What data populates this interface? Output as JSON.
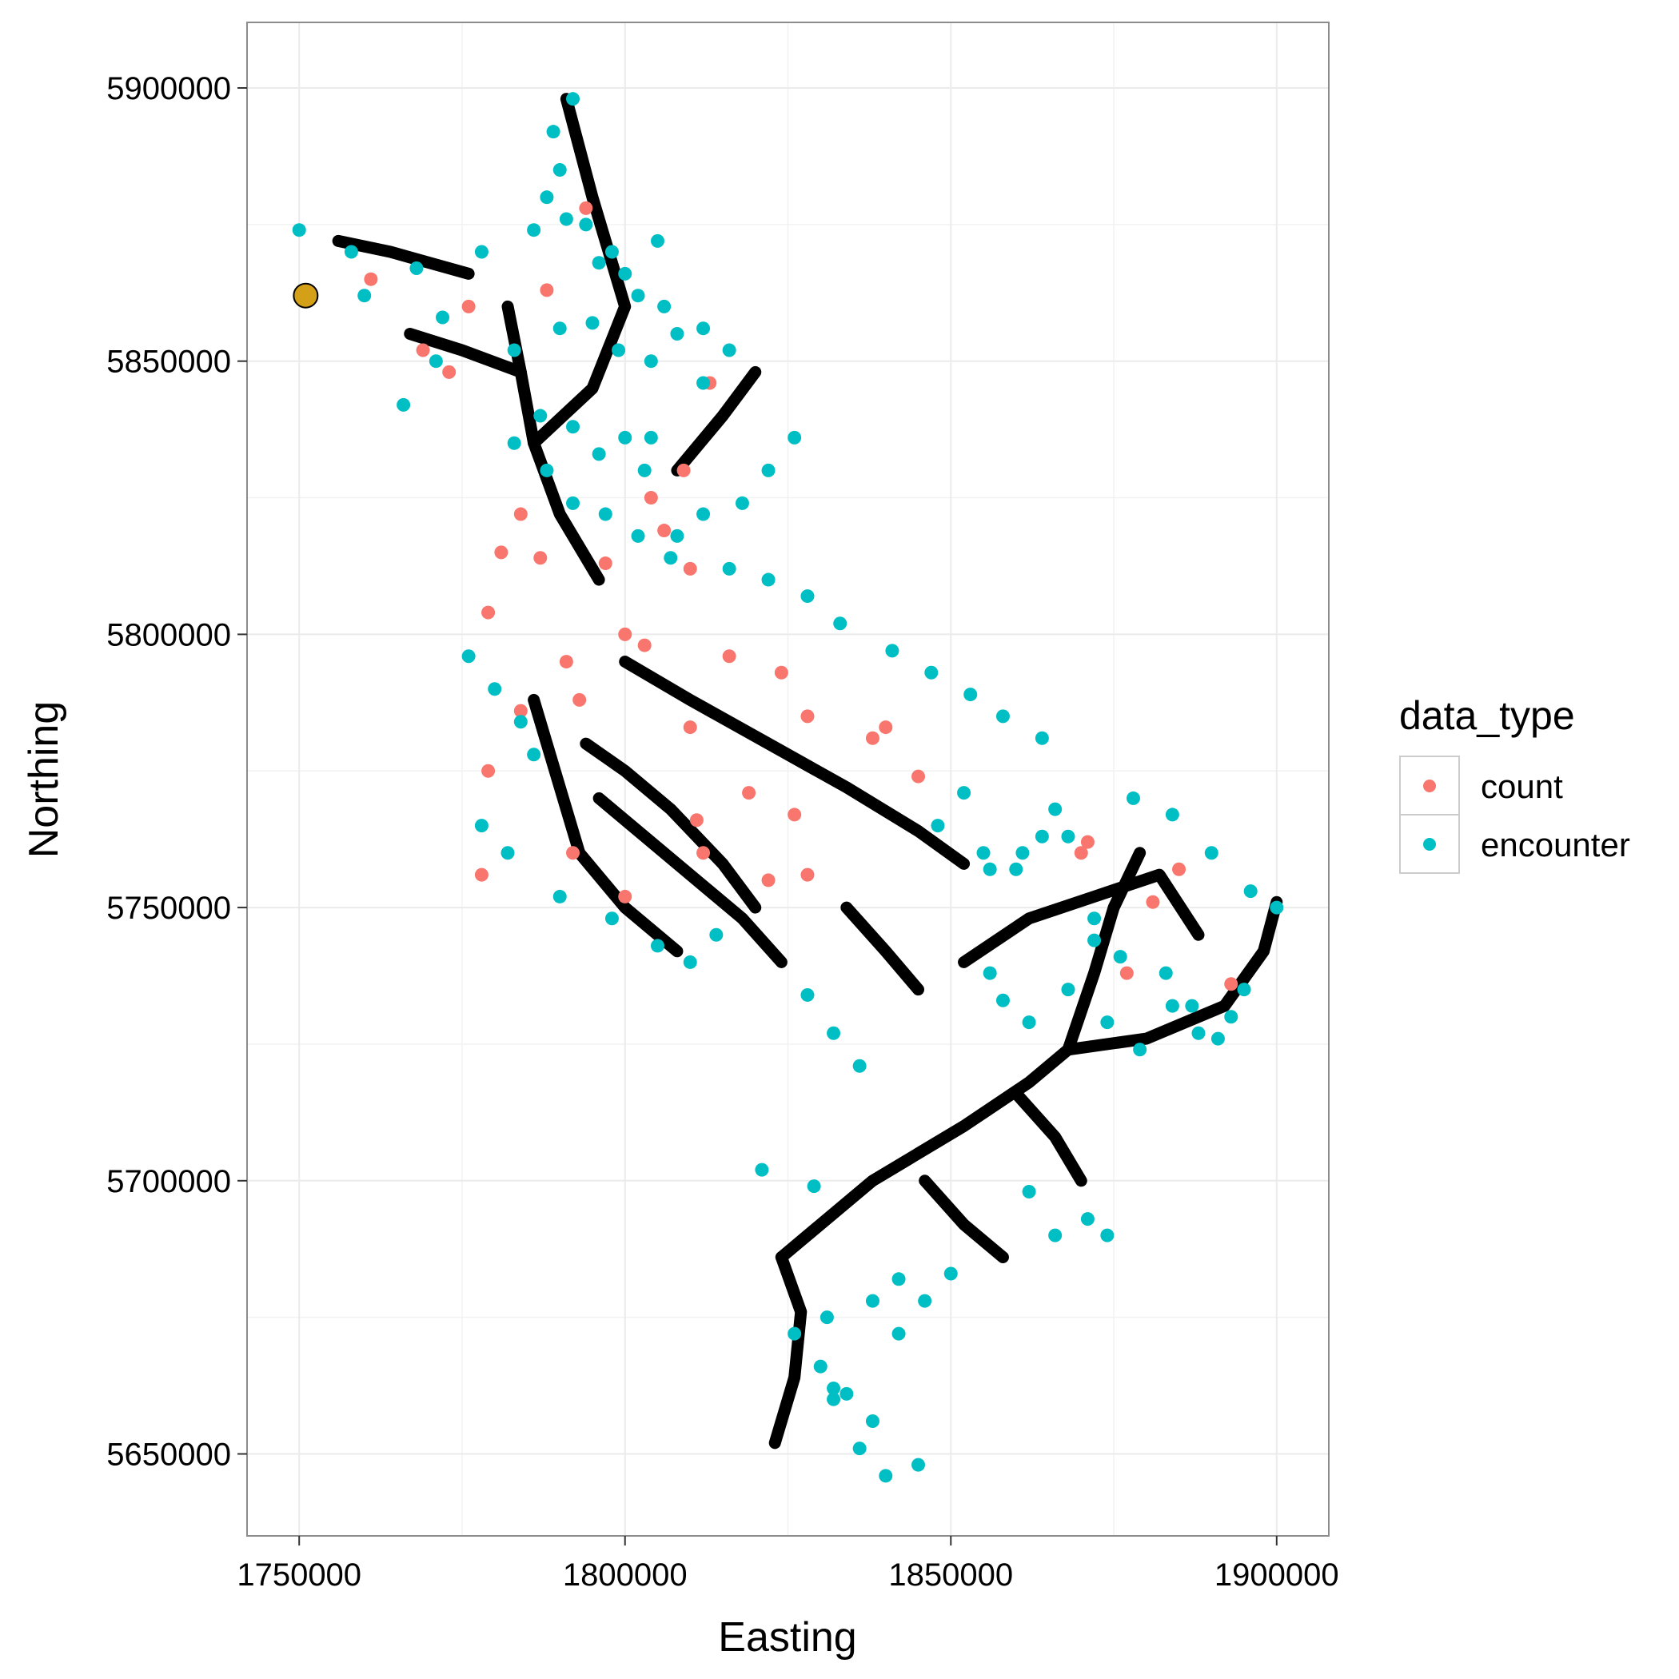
{
  "chart_data": {
    "type": "scatter",
    "xlabel": "Easting",
    "ylabel": "Northing",
    "xlim": [
      1742000,
      1908000
    ],
    "ylim": [
      5635000,
      5912000
    ],
    "x_ticks": [
      1750000,
      1800000,
      1850000,
      1900000
    ],
    "y_ticks": [
      5650000,
      5700000,
      5750000,
      5800000,
      5850000,
      5900000
    ],
    "grid": true,
    "legend_title": "data_type",
    "legend_position": "right",
    "colors": {
      "network": "#000000",
      "count": "#F8766D",
      "encounter": "#00BFC4",
      "site": "#D4A017"
    },
    "network_paths": [
      [
        [
          1824000,
          5686000
        ],
        [
          1838000,
          5700000
        ],
        [
          1852000,
          5710000
        ],
        [
          1862000,
          5718000
        ],
        [
          1868000,
          5724000
        ]
      ],
      [
        [
          1868000,
          5724000
        ],
        [
          1880000,
          5726000
        ],
        [
          1892000,
          5732000
        ],
        [
          1898000,
          5742000
        ],
        [
          1900000,
          5751000
        ]
      ],
      [
        [
          1868000,
          5724000
        ],
        [
          1872000,
          5738000
        ],
        [
          1875000,
          5750000
        ],
        [
          1879000,
          5760000
        ]
      ],
      [
        [
          1824000,
          5686000
        ],
        [
          1827000,
          5676000
        ],
        [
          1826000,
          5664000
        ],
        [
          1823000,
          5652000
        ]
      ],
      [
        [
          1852000,
          5740000
        ],
        [
          1862000,
          5748000
        ],
        [
          1872000,
          5752000
        ],
        [
          1882000,
          5756000
        ],
        [
          1888000,
          5745000
        ]
      ],
      [
        [
          1824000,
          5740000
        ],
        [
          1818000,
          5748000
        ],
        [
          1810000,
          5756000
        ],
        [
          1803000,
          5763000
        ],
        [
          1796000,
          5770000
        ]
      ],
      [
        [
          1800000,
          5795000
        ],
        [
          1810000,
          5788000
        ],
        [
          1822000,
          5780000
        ],
        [
          1834000,
          5772000
        ],
        [
          1845000,
          5764000
        ],
        [
          1852000,
          5758000
        ]
      ],
      [
        [
          1796000,
          5810000
        ],
        [
          1790000,
          5822000
        ],
        [
          1786000,
          5835000
        ],
        [
          1784000,
          5848000
        ],
        [
          1782000,
          5860000
        ]
      ],
      [
        [
          1786000,
          5835000
        ],
        [
          1795000,
          5845000
        ],
        [
          1800000,
          5860000
        ],
        [
          1795000,
          5880000
        ],
        [
          1791000,
          5898000
        ]
      ],
      [
        [
          1776000,
          5866000
        ],
        [
          1764000,
          5870000
        ],
        [
          1756000,
          5872000
        ]
      ],
      [
        [
          1784000,
          5848000
        ],
        [
          1775000,
          5852000
        ],
        [
          1767000,
          5855000
        ]
      ],
      [
        [
          1794000,
          5780000
        ],
        [
          1800000,
          5775000
        ],
        [
          1807000,
          5768000
        ],
        [
          1815000,
          5758000
        ],
        [
          1820000,
          5750000
        ]
      ],
      [
        [
          1786000,
          5788000
        ],
        [
          1790000,
          5772000
        ],
        [
          1793000,
          5760000
        ],
        [
          1800000,
          5750000
        ],
        [
          1808000,
          5742000
        ]
      ],
      [
        [
          1808000,
          5830000
        ],
        [
          1815000,
          5840000
        ],
        [
          1820000,
          5848000
        ]
      ],
      [
        [
          1834000,
          5750000
        ],
        [
          1840000,
          5742000
        ],
        [
          1845000,
          5735000
        ]
      ],
      [
        [
          1846000,
          5700000
        ],
        [
          1852000,
          5692000
        ],
        [
          1858000,
          5686000
        ]
      ],
      [
        [
          1860000,
          5716000
        ],
        [
          1866000,
          5708000
        ],
        [
          1870000,
          5700000
        ]
      ]
    ],
    "series": [
      {
        "name": "count",
        "x": [
          1794000,
          1773000,
          1788000,
          1779000,
          1804000,
          1810000,
          1787000,
          1797000,
          1781000,
          1800000,
          1803000,
          1791000,
          1793000,
          1784000,
          1810000,
          1816000,
          1824000,
          1828000,
          1840000,
          1845000,
          1792000,
          1800000,
          1828000,
          1811000,
          1812000,
          1819000,
          1826000,
          1838000,
          1870000,
          1871000,
          1877000,
          1881000,
          1885000,
          1893000,
          1778000,
          1806000,
          1779000,
          1809000,
          1822000,
          1769000,
          1761000,
          1776000,
          1784000,
          1813000
        ],
        "y": [
          5878000,
          5848000,
          5863000,
          5804000,
          5825000,
          5812000,
          5814000,
          5813000,
          5815000,
          5800000,
          5798000,
          5795000,
          5788000,
          5786000,
          5783000,
          5796000,
          5793000,
          5785000,
          5783000,
          5774000,
          5760000,
          5752000,
          5756000,
          5766000,
          5760000,
          5771000,
          5767000,
          5781000,
          5760000,
          5762000,
          5738000,
          5751000,
          5757000,
          5736000,
          5756000,
          5819000,
          5775000,
          5830000,
          5755000,
          5852000,
          5865000,
          5860000,
          5822000,
          5846000
        ]
      },
      {
        "name": "encounter",
        "x": [
          1750000,
          1758000,
          1768000,
          1778000,
          1786000,
          1791000,
          1796000,
          1800000,
          1805000,
          1760000,
          1772000,
          1783000,
          1790000,
          1795000,
          1799000,
          1804000,
          1812000,
          1787000,
          1792000,
          1796000,
          1800000,
          1803000,
          1783000,
          1788000,
          1792000,
          1797000,
          1802000,
          1807000,
          1816000,
          1822000,
          1828000,
          1833000,
          1841000,
          1847000,
          1853000,
          1858000,
          1864000,
          1878000,
          1884000,
          1890000,
          1896000,
          1900000,
          1856000,
          1861000,
          1868000,
          1872000,
          1876000,
          1883000,
          1887000,
          1893000,
          1828000,
          1832000,
          1836000,
          1831000,
          1826000,
          1830000,
          1834000,
          1838000,
          1836000,
          1840000,
          1845000,
          1821000,
          1829000,
          1776000,
          1780000,
          1784000,
          1786000,
          1778000,
          1782000,
          1790000,
          1798000,
          1805000,
          1810000,
          1814000,
          1771000,
          1766000,
          1790000,
          1789000,
          1792000,
          1788000,
          1794000,
          1798000,
          1802000,
          1806000,
          1808000,
          1812000,
          1816000,
          1848000,
          1852000,
          1855000,
          1860000,
          1864000,
          1866000,
          1872000,
          1856000,
          1858000,
          1862000,
          1868000,
          1874000,
          1879000,
          1884000,
          1888000,
          1891000,
          1895000,
          1832000,
          1842000,
          1846000,
          1850000,
          1862000,
          1866000,
          1871000,
          1874000,
          1842000,
          1838000,
          1832000,
          1818000,
          1822000,
          1826000,
          1808000,
          1812000,
          1804000
        ],
        "y": [
          5874000,
          5870000,
          5867000,
          5870000,
          5874000,
          5876000,
          5868000,
          5866000,
          5872000,
          5862000,
          5858000,
          5852000,
          5856000,
          5857000,
          5852000,
          5850000,
          5846000,
          5840000,
          5838000,
          5833000,
          5836000,
          5830000,
          5835000,
          5830000,
          5824000,
          5822000,
          5818000,
          5814000,
          5812000,
          5810000,
          5807000,
          5802000,
          5797000,
          5793000,
          5789000,
          5785000,
          5781000,
          5770000,
          5767000,
          5760000,
          5753000,
          5750000,
          5757000,
          5760000,
          5763000,
          5748000,
          5741000,
          5738000,
          5732000,
          5730000,
          5734000,
          5727000,
          5721000,
          5675000,
          5672000,
          5666000,
          5661000,
          5656000,
          5651000,
          5646000,
          5648000,
          5702000,
          5699000,
          5796000,
          5790000,
          5784000,
          5778000,
          5765000,
          5760000,
          5752000,
          5748000,
          5743000,
          5740000,
          5745000,
          5850000,
          5842000,
          5885000,
          5892000,
          5898000,
          5880000,
          5875000,
          5870000,
          5862000,
          5860000,
          5855000,
          5856000,
          5852000,
          5765000,
          5771000,
          5760000,
          5757000,
          5763000,
          5768000,
          5744000,
          5738000,
          5733000,
          5729000,
          5735000,
          5729000,
          5724000,
          5732000,
          5727000,
          5726000,
          5735000,
          5662000,
          5672000,
          5678000,
          5683000,
          5698000,
          5690000,
          5693000,
          5690000,
          5682000,
          5678000,
          5660000,
          5824000,
          5830000,
          5836000,
          5818000,
          5822000,
          5836000
        ]
      }
    ],
    "highlight": {
      "x": 1751000,
      "y": 5862000
    }
  }
}
